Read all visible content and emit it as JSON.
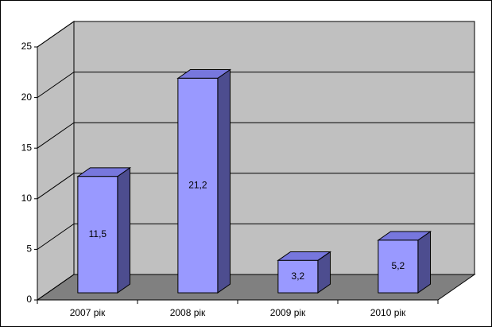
{
  "chart_data": {
    "type": "bar3d",
    "categories": [
      "2007 рік",
      "2008 рік",
      "2009 рік",
      "2010 рік"
    ],
    "values": [
      11.5,
      21.2,
      3.2,
      5.2
    ],
    "value_labels": [
      "11,5",
      "21,2",
      "3,2",
      "5,2"
    ],
    "color": "#9999ff",
    "ylim": [
      0,
      25
    ],
    "yticks": [
      0,
      5,
      10,
      15,
      20,
      25
    ],
    "grid": true
  }
}
